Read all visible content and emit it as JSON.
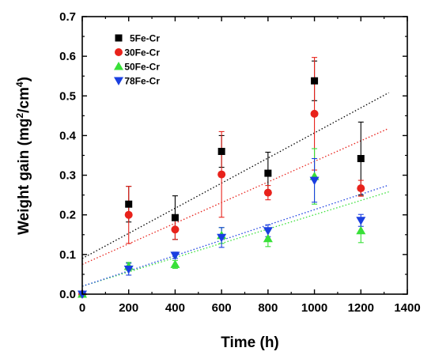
{
  "chart_data": {
    "type": "scatter",
    "xlabel": "Time (h)",
    "ylabel_main": "Weight gain (mg",
    "ylabel_sup1": "2",
    "ylabel_mid": "/cm",
    "ylabel_sup2": "4",
    "ylabel_end": ")",
    "xlim": [
      0,
      1400
    ],
    "ylim": [
      0,
      0.7
    ],
    "xticks": [
      0,
      200,
      400,
      600,
      800,
      1000,
      1200,
      1400
    ],
    "yticks": [
      0.0,
      0.1,
      0.2,
      0.3,
      0.4,
      0.5,
      0.6,
      0.7
    ],
    "ytick_labels": [
      "0.0",
      "0.1",
      "0.2",
      "0.3",
      "0.4",
      "0.5",
      "0.6",
      "0.7"
    ],
    "grid": false,
    "legend_position": "top-left",
    "series": [
      {
        "name": "5Fe-Cr",
        "marker": "square",
        "color": "#000000",
        "points": [
          {
            "x": 0,
            "y": 0.0,
            "err": 0
          },
          {
            "x": 200,
            "y": 0.227,
            "err": 0.045
          },
          {
            "x": 400,
            "y": 0.193,
            "err": 0.055
          },
          {
            "x": 600,
            "y": 0.36,
            "err": 0.04
          },
          {
            "x": 800,
            "y": 0.305,
            "err": 0.053
          },
          {
            "x": 1000,
            "y": 0.538,
            "err": 0.05
          },
          {
            "x": 1200,
            "y": 0.342,
            "err": 0.092
          }
        ],
        "trend": {
          "x0": 0,
          "y0": 0.09,
          "x1": 1320,
          "y1": 0.508
        }
      },
      {
        "name": "30Fe-Cr",
        "marker": "circle",
        "color": "#e8221b",
        "points": [
          {
            "x": 0,
            "y": 0.0,
            "err": 0
          },
          {
            "x": 200,
            "y": 0.2,
            "err": 0.072
          },
          {
            "x": 400,
            "y": 0.163,
            "err": 0.025
          },
          {
            "x": 600,
            "y": 0.302,
            "err": 0.108
          },
          {
            "x": 800,
            "y": 0.256,
            "err": 0.018
          },
          {
            "x": 1000,
            "y": 0.455,
            "err": 0.142
          },
          {
            "x": 1200,
            "y": 0.267,
            "err": 0.02
          }
        ],
        "trend": {
          "x0": 0,
          "y0": 0.075,
          "x1": 1320,
          "y1": 0.418
        }
      },
      {
        "name": "50Fe-Cr",
        "marker": "triangle-up",
        "color": "#38e038",
        "points": [
          {
            "x": 0,
            "y": 0.0,
            "err": 0
          },
          {
            "x": 200,
            "y": 0.07,
            "err": 0.01
          },
          {
            "x": 400,
            "y": 0.075,
            "err": 0.01
          },
          {
            "x": 600,
            "y": 0.148,
            "err": 0.02
          },
          {
            "x": 800,
            "y": 0.14,
            "err": 0.02
          },
          {
            "x": 1000,
            "y": 0.297,
            "err": 0.07
          },
          {
            "x": 1200,
            "y": 0.16,
            "err": 0.03
          }
        ],
        "trend": {
          "x0": 0,
          "y0": 0.02,
          "x1": 1320,
          "y1": 0.258
        }
      },
      {
        "name": "78Fe-Cr",
        "marker": "triangle-down",
        "color": "#1a3fe0",
        "points": [
          {
            "x": 0,
            "y": 0.0,
            "err": 0
          },
          {
            "x": 200,
            "y": 0.063,
            "err": 0.015
          },
          {
            "x": 400,
            "y": 0.098,
            "err": 0.008
          },
          {
            "x": 600,
            "y": 0.143,
            "err": 0.025
          },
          {
            "x": 800,
            "y": 0.16,
            "err": 0.015
          },
          {
            "x": 1000,
            "y": 0.287,
            "err": 0.055
          },
          {
            "x": 1200,
            "y": 0.186,
            "err": 0.015
          }
        ],
        "trend": {
          "x0": 0,
          "y0": 0.02,
          "x1": 1320,
          "y1": 0.275
        }
      }
    ]
  }
}
